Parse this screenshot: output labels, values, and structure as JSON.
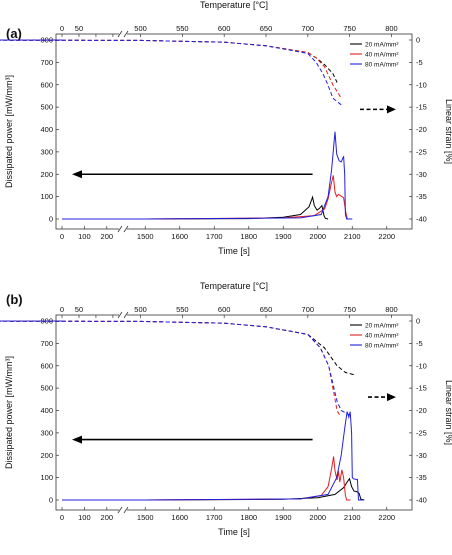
{
  "chart_data": [
    {
      "type": "line",
      "panel_label": "(a)",
      "x_top_label": "Temperature [°C]",
      "x_top_ticks": [
        0,
        50,
        100,
        150,
        500,
        550,
        600,
        650,
        700,
        750,
        800
      ],
      "x_top_tick_labels": [
        "0",
        "50",
        "",
        "",
        "500",
        "550",
        "600",
        "650",
        "700",
        "750",
        "800"
      ],
      "xlabel": "Time [s]",
      "x_bottom_ticks": [
        "0",
        "100",
        "200",
        "1500",
        "1600",
        "1700",
        "1800",
        "1900",
        "2000",
        "2100",
        "2200"
      ],
      "ylabel_left": "Dissipated power [mW/mm³]",
      "ylim_left": [
        0,
        800
      ],
      "y_left_ticks": [
        "0",
        "100",
        "200",
        "300",
        "400",
        "500",
        "600",
        "700",
        "800"
      ],
      "ylabel_right": "Linear strain [%]",
      "ylim_right": [
        -40,
        0
      ],
      "y_right_ticks": [
        "0",
        "-5",
        "-10",
        "-15",
        "-20",
        "-25",
        "-30",
        "-35",
        "-40"
      ],
      "legend_placement": "top-right",
      "series": [
        {
          "name": "20 mA/mm²",
          "color": "#000000",
          "power": [
            [
              0,
              0
            ],
            [
              1500,
              0
            ],
            [
              1800,
              2
            ],
            [
              1900,
              8
            ],
            [
              1950,
              20
            ],
            [
              1975,
              55
            ],
            [
              1985,
              98
            ],
            [
              1990,
              60
            ],
            [
              1998,
              40
            ],
            [
              2005,
              48
            ],
            [
              2012,
              60
            ],
            [
              2018,
              15
            ],
            [
              2022,
              3
            ],
            [
              2030,
              0
            ]
          ],
          "strain": [
            [
              0,
              0
            ],
            [
              200,
              0
            ],
            [
              500,
              -0.1
            ],
            [
              550,
              -0.3
            ],
            [
              600,
              -0.5
            ],
            [
              650,
              -1.3
            ],
            [
              700,
              -2.8
            ],
            [
              710,
              -4
            ],
            [
              720,
              -5.5
            ],
            [
              730,
              -7.5
            ],
            [
              735,
              -9.5
            ]
          ]
        },
        {
          "name": "40 mA/mm²",
          "color": "#e02020",
          "power": [
            [
              0,
              0
            ],
            [
              1500,
              0
            ],
            [
              1900,
              5
            ],
            [
              1990,
              15
            ],
            [
              2020,
              45
            ],
            [
              2030,
              90
            ],
            [
              2038,
              150
            ],
            [
              2045,
              195
            ],
            [
              2050,
              120
            ],
            [
              2055,
              100
            ],
            [
              2060,
              110
            ],
            [
              2068,
              102
            ],
            [
              2075,
              95
            ],
            [
              2082,
              25
            ],
            [
              2086,
              0
            ],
            [
              2095,
              0
            ]
          ],
          "strain": [
            [
              0,
              0
            ],
            [
              200,
              0
            ],
            [
              500,
              -0.1
            ],
            [
              550,
              -0.3
            ],
            [
              600,
              -0.5
            ],
            [
              650,
              -1.3
            ],
            [
              700,
              -2.8
            ],
            [
              710,
              -4
            ],
            [
              720,
              -6
            ],
            [
              725,
              -8
            ],
            [
              730,
              -10
            ],
            [
              740,
              -13
            ]
          ]
        },
        {
          "name": "80 mA/mm²",
          "color": "#2020e0",
          "power": [
            [
              0,
              0
            ],
            [
              1500,
              0
            ],
            [
              1950,
              5
            ],
            [
              2010,
              20
            ],
            [
              2030,
              100
            ],
            [
              2040,
              220
            ],
            [
              2046,
              320
            ],
            [
              2050,
              390
            ],
            [
              2055,
              290
            ],
            [
              2062,
              260
            ],
            [
              2068,
              255
            ],
            [
              2075,
              280
            ],
            [
              2078,
              200
            ],
            [
              2080,
              20
            ],
            [
              2084,
              0
            ],
            [
              2100,
              0
            ]
          ],
          "strain": [
            [
              0,
              0
            ],
            [
              200,
              0
            ],
            [
              500,
              -0.1
            ],
            [
              550,
              -0.3
            ],
            [
              600,
              -0.5
            ],
            [
              650,
              -1.3
            ],
            [
              700,
              -3
            ],
            [
              710,
              -5
            ],
            [
              718,
              -7.5
            ],
            [
              724,
              -10
            ],
            [
              730,
              -13
            ],
            [
              740,
              -14.5
            ]
          ]
        }
      ]
    },
    {
      "type": "line",
      "panel_label": "(b)",
      "x_top_label": "Temperature [°C]",
      "x_top_ticks": [
        0,
        50,
        100,
        150,
        500,
        550,
        600,
        650,
        700,
        750,
        800
      ],
      "x_top_tick_labels": [
        "0",
        "50",
        "",
        "",
        "500",
        "550",
        "600",
        "650",
        "700",
        "750",
        "800"
      ],
      "xlabel": "Time [s]",
      "x_bottom_ticks": [
        "0",
        "100",
        "200",
        "1500",
        "1600",
        "1700",
        "1800",
        "1900",
        "2000",
        "2100",
        "2200"
      ],
      "ylabel_left": "Dissipated power [mW/mm³]",
      "ylim_left": [
        0,
        800
      ],
      "y_left_ticks": [
        "0",
        "100",
        "200",
        "300",
        "400",
        "500",
        "600",
        "700",
        "800"
      ],
      "ylabel_right": "Linear strain [%]",
      "ylim_right": [
        -40,
        0
      ],
      "y_right_ticks": [
        "0",
        "-5",
        "-10",
        "-15",
        "-20",
        "-25",
        "-30",
        "-35",
        "-40"
      ],
      "legend_placement": "top-right",
      "series": [
        {
          "name": "20 mA/mm²",
          "color": "#000000",
          "power": [
            [
              0,
              0
            ],
            [
              1500,
              0
            ],
            [
              1900,
              3
            ],
            [
              2000,
              10
            ],
            [
              2050,
              25
            ],
            [
              2075,
              55
            ],
            [
              2085,
              80
            ],
            [
              2092,
              95
            ],
            [
              2098,
              60
            ],
            [
              2105,
              40
            ],
            [
              2112,
              38
            ],
            [
              2120,
              30
            ],
            [
              2125,
              3
            ],
            [
              2135,
              0
            ]
          ],
          "strain": [
            [
              0,
              0
            ],
            [
              200,
              0
            ],
            [
              500,
              -0.1
            ],
            [
              550,
              -0.3
            ],
            [
              600,
              -0.5
            ],
            [
              650,
              -1.3
            ],
            [
              700,
              -3
            ],
            [
              720,
              -6
            ],
            [
              735,
              -10
            ],
            [
              745,
              -11.5
            ],
            [
              755,
              -12
            ]
          ]
        },
        {
          "name": "40 mA/mm²",
          "color": "#e02020",
          "power": [
            [
              0,
              0
            ],
            [
              1500,
              0
            ],
            [
              1950,
              5
            ],
            [
              2010,
              20
            ],
            [
              2030,
              60
            ],
            [
              2040,
              140
            ],
            [
              2046,
              195
            ],
            [
              2050,
              130
            ],
            [
              2056,
              90
            ],
            [
              2060,
              130
            ],
            [
              2064,
              80
            ],
            [
              2070,
              135
            ],
            [
              2075,
              100
            ],
            [
              2080,
              20
            ],
            [
              2084,
              0
            ],
            [
              2095,
              0
            ]
          ],
          "strain": [
            [
              0,
              0
            ],
            [
              200,
              0
            ],
            [
              500,
              -0.1
            ],
            [
              550,
              -0.3
            ],
            [
              600,
              -0.5
            ],
            [
              650,
              -1.3
            ],
            [
              700,
              -3
            ],
            [
              715,
              -6
            ],
            [
              725,
              -10
            ],
            [
              730,
              -15
            ],
            [
              735,
              -20
            ],
            [
              738,
              -21
            ]
          ]
        },
        {
          "name": "80 mA/mm²",
          "color": "#2020e0",
          "power": [
            [
              0,
              0
            ],
            [
              1500,
              0
            ],
            [
              1950,
              5
            ],
            [
              2030,
              25
            ],
            [
              2055,
              100
            ],
            [
              2068,
              200
            ],
            [
              2078,
              320
            ],
            [
              2085,
              395
            ],
            [
              2090,
              370
            ],
            [
              2094,
              395
            ],
            [
              2098,
              300
            ],
            [
              2100,
              100
            ],
            [
              2103,
              95
            ],
            [
              2110,
              92
            ],
            [
              2115,
              92
            ],
            [
              2118,
              0
            ],
            [
              2130,
              0
            ]
          ],
          "strain": [
            [
              0,
              0
            ],
            [
              200,
              0
            ],
            [
              500,
              -0.1
            ],
            [
              550,
              -0.3
            ],
            [
              600,
              -0.5
            ],
            [
              650,
              -1.3
            ],
            [
              700,
              -3
            ],
            [
              715,
              -6
            ],
            [
              725,
              -10
            ],
            [
              730,
              -14
            ],
            [
              735,
              -18
            ],
            [
              740,
              -20
            ],
            [
              750,
              -21
            ]
          ]
        }
      ]
    }
  ]
}
